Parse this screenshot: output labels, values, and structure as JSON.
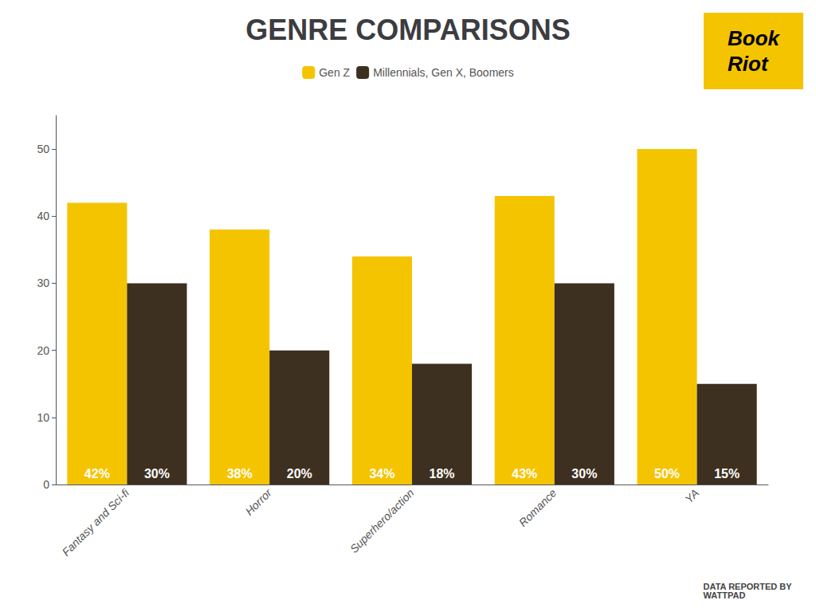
{
  "chart_data": {
    "type": "bar",
    "title": "GENRE COMPARISONS",
    "categories": [
      "Fantasy and Sci-fi",
      "Horror",
      "Superhero/action",
      "Romance",
      "YA"
    ],
    "series": [
      {
        "name": "Gen Z",
        "color": "#F5C400",
        "values": [
          42,
          38,
          34,
          43,
          50
        ],
        "value_labels": [
          "42%",
          "38%",
          "34%",
          "43%",
          "50%"
        ]
      },
      {
        "name": "Millennials, Gen X, Boomers",
        "color": "#3D3020",
        "values": [
          30,
          20,
          18,
          30,
          15
        ],
        "value_labels": [
          "30%",
          "20%",
          "18%",
          "30%",
          "15%"
        ]
      }
    ],
    "ylim": [
      0,
      55
    ],
    "yticks": [
      0,
      10,
      20,
      30,
      40,
      50
    ],
    "grid": false,
    "legend": "top",
    "data_labels": true,
    "annotations": [
      "DATA REPORTED BY\nWATTPAD",
      "Book\nRiot"
    ]
  }
}
